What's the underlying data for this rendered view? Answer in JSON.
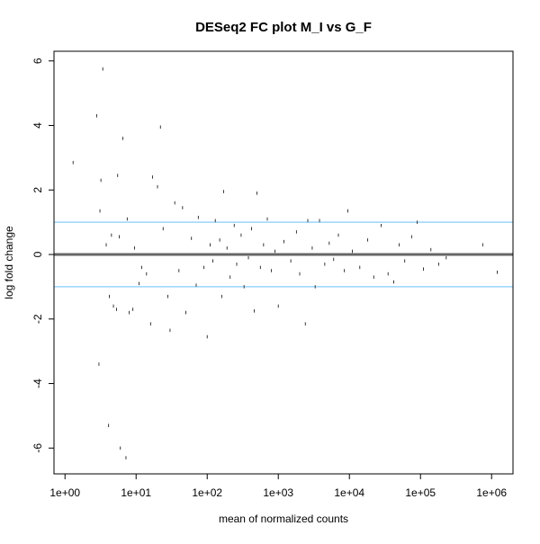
{
  "chart_data": {
    "type": "scatter",
    "title": "DESeq2 FC plot M_I vs G_F",
    "xlabel": "mean of normalized counts",
    "ylabel": "log fold change",
    "x_scale": "log10",
    "xlim": [
      0.7,
      2000000
    ],
    "ylim": [
      -6.8,
      6.3
    ],
    "x_ticks": [
      1,
      10,
      100,
      1000,
      10000,
      100000,
      1000000
    ],
    "x_tick_labels": [
      "1e+00",
      "1e+01",
      "1e+02",
      "1e+03",
      "1e+04",
      "1e+05",
      "1e+06"
    ],
    "y_ticks": [
      -6,
      -4,
      -2,
      0,
      2,
      4,
      6
    ],
    "y_tick_labels": [
      "-6",
      "-4",
      "-2",
      "0",
      "2",
      "4",
      "6"
    ],
    "grid": false,
    "colors": {
      "points": "#222222",
      "zero_line": "#666666",
      "threshold_lines": "#87cefa",
      "frame": "#000000"
    },
    "reference_lines": [
      {
        "y": 0,
        "color": "#666666"
      },
      {
        "y": 1,
        "color": "#87cefa"
      },
      {
        "y": -1,
        "color": "#87cefa"
      }
    ],
    "points": [
      {
        "x": 1.3,
        "y": 2.85
      },
      {
        "x": 2.8,
        "y": 4.3
      },
      {
        "x": 3.2,
        "y": 2.3
      },
      {
        "x": 3.4,
        "y": 5.75
      },
      {
        "x": 3.1,
        "y": 1.35
      },
      {
        "x": 3.0,
        "y": -3.4
      },
      {
        "x": 4.1,
        "y": -5.3
      },
      {
        "x": 6.0,
        "y": -6.0
      },
      {
        "x": 7.2,
        "y": -6.3
      },
      {
        "x": 4.2,
        "y": -1.3
      },
      {
        "x": 4.8,
        "y": -1.6
      },
      {
        "x": 5.3,
        "y": -1.7
      },
      {
        "x": 6.5,
        "y": 3.6
      },
      {
        "x": 5.5,
        "y": 2.45
      },
      {
        "x": 17,
        "y": 2.4
      },
      {
        "x": 20,
        "y": 2.1
      },
      {
        "x": 22,
        "y": 3.95
      },
      {
        "x": 3.8,
        "y": 0.3
      },
      {
        "x": 4.5,
        "y": 0.6
      },
      {
        "x": 5.8,
        "y": 0.55
      },
      {
        "x": 7.5,
        "y": 1.1
      },
      {
        "x": 9.5,
        "y": 0.2
      },
      {
        "x": 12,
        "y": -0.4
      },
      {
        "x": 14,
        "y": -0.6
      },
      {
        "x": 8.0,
        "y": -1.8
      },
      {
        "x": 9.0,
        "y": -1.7
      },
      {
        "x": 11,
        "y": -0.9
      },
      {
        "x": 16,
        "y": -2.15
      },
      {
        "x": 24,
        "y": 0.8
      },
      {
        "x": 28,
        "y": -1.3
      },
      {
        "x": 30,
        "y": -2.35
      },
      {
        "x": 35,
        "y": 1.6
      },
      {
        "x": 40,
        "y": -0.5
      },
      {
        "x": 45,
        "y": 1.45
      },
      {
        "x": 50,
        "y": -1.8
      },
      {
        "x": 60,
        "y": 0.5
      },
      {
        "x": 70,
        "y": -0.95
      },
      {
        "x": 75,
        "y": 1.15
      },
      {
        "x": 90,
        "y": -0.4
      },
      {
        "x": 100,
        "y": -2.55
      },
      {
        "x": 110,
        "y": 0.3
      },
      {
        "x": 120,
        "y": -0.2
      },
      {
        "x": 130,
        "y": 1.05
      },
      {
        "x": 150,
        "y": 0.45
      },
      {
        "x": 160,
        "y": -1.3
      },
      {
        "x": 170,
        "y": 1.95
      },
      {
        "x": 190,
        "y": 0.2
      },
      {
        "x": 210,
        "y": -0.7
      },
      {
        "x": 240,
        "y": 0.9
      },
      {
        "x": 260,
        "y": -0.3
      },
      {
        "x": 300,
        "y": 0.6
      },
      {
        "x": 330,
        "y": -1.0
      },
      {
        "x": 380,
        "y": -0.1
      },
      {
        "x": 420,
        "y": 0.8
      },
      {
        "x": 460,
        "y": -1.75
      },
      {
        "x": 500,
        "y": 1.9
      },
      {
        "x": 560,
        "y": -0.4
      },
      {
        "x": 620,
        "y": 0.3
      },
      {
        "x": 700,
        "y": 1.1
      },
      {
        "x": 800,
        "y": -0.5
      },
      {
        "x": 900,
        "y": 0.1
      },
      {
        "x": 1000,
        "y": -1.6
      },
      {
        "x": 1200,
        "y": 0.4
      },
      {
        "x": 1500,
        "y": -0.2
      },
      {
        "x": 1800,
        "y": 0.7
      },
      {
        "x": 2000,
        "y": -0.6
      },
      {
        "x": 2400,
        "y": -2.15
      },
      {
        "x": 2600,
        "y": 1.05
      },
      {
        "x": 3000,
        "y": 0.2
      },
      {
        "x": 3300,
        "y": -1.0
      },
      {
        "x": 3800,
        "y": 1.05
      },
      {
        "x": 4500,
        "y": -0.3
      },
      {
        "x": 5200,
        "y": 0.35
      },
      {
        "x": 6000,
        "y": -0.15
      },
      {
        "x": 7000,
        "y": 0.6
      },
      {
        "x": 8500,
        "y": -0.5
      },
      {
        "x": 9500,
        "y": 1.35
      },
      {
        "x": 11000,
        "y": 0.1
      },
      {
        "x": 14000,
        "y": -0.4
      },
      {
        "x": 18000,
        "y": 0.45
      },
      {
        "x": 22000,
        "y": -0.7
      },
      {
        "x": 28000,
        "y": 0.9
      },
      {
        "x": 35000,
        "y": -0.6
      },
      {
        "x": 42000,
        "y": -0.85
      },
      {
        "x": 50000,
        "y": 0.3
      },
      {
        "x": 60000,
        "y": -0.2
      },
      {
        "x": 75000,
        "y": 0.55
      },
      {
        "x": 90000,
        "y": 1.0
      },
      {
        "x": 110000,
        "y": -0.45
      },
      {
        "x": 140000,
        "y": 0.15
      },
      {
        "x": 180000,
        "y": -0.3
      },
      {
        "x": 230000,
        "y": -0.1
      },
      {
        "x": 750000,
        "y": 0.3
      },
      {
        "x": 1200000,
        "y": -0.55
      }
    ]
  }
}
